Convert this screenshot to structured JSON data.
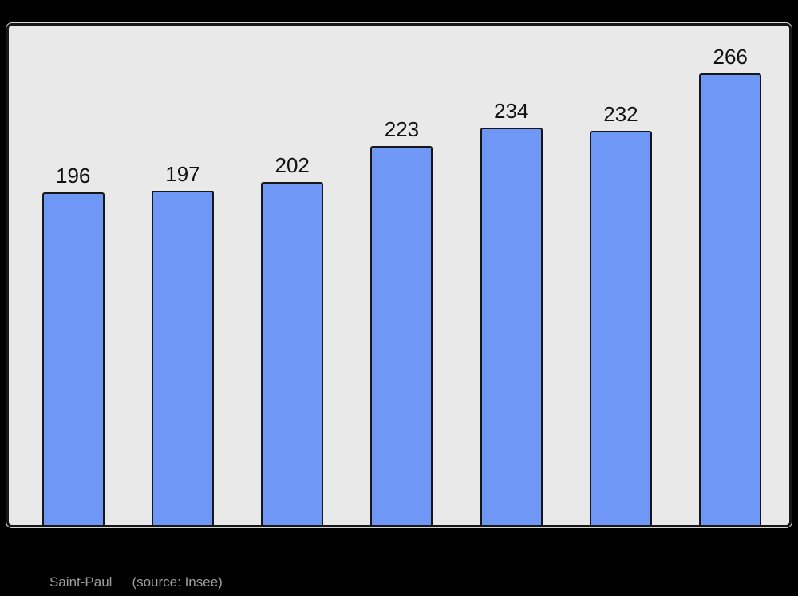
{
  "page": {
    "background": "#000000"
  },
  "chart_data": {
    "type": "bar",
    "title": "",
    "values": [
      196,
      197,
      202,
      223,
      234,
      232,
      266
    ],
    "bar_labels": [
      "196",
      "197",
      "202",
      "223",
      "234",
      "232",
      "266"
    ],
    "categories": [
      "",
      "",
      "",
      "",
      "",
      "",
      ""
    ],
    "ylim": [
      0,
      292
    ],
    "grid": false,
    "legend": false,
    "axes_visible": false,
    "labels_above_bars": true,
    "bar_color": "#6e97f6",
    "bar_border_color": "#171717",
    "plot_background": "#e9e9e9",
    "frame_border_color": "#171717",
    "frame_rim_color": "#d6d6d6",
    "value_label_color": "#121212"
  },
  "footer": {
    "title": "Saint-Paul",
    "source": "(source: Insee)",
    "color": "#9d9d9d"
  }
}
